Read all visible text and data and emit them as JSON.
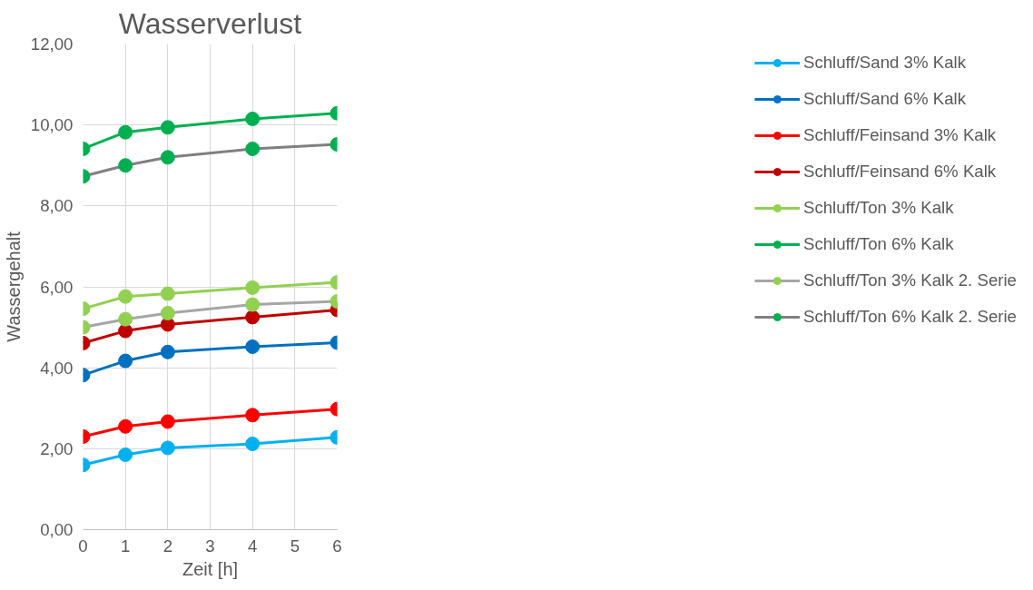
{
  "chart_data": {
    "type": "line",
    "title": "Wasserverlust",
    "xlabel": "Zeit [h]",
    "ylabel": "Wassergehalt",
    "x": [
      0,
      1,
      2,
      4,
      6
    ],
    "xlim": [
      0,
      6
    ],
    "xticks": [
      0,
      1,
      2,
      3,
      4,
      5,
      6
    ],
    "ylim": [
      0,
      12
    ],
    "yticks": [
      {
        "value": 0,
        "label": "0,00"
      },
      {
        "value": 2,
        "label": "2,00"
      },
      {
        "value": 4,
        "label": "4,00"
      },
      {
        "value": 6,
        "label": "6,00"
      },
      {
        "value": 8,
        "label": "8,00"
      },
      {
        "value": 10,
        "label": "10,00"
      },
      {
        "value": 12,
        "label": "12,00"
      }
    ],
    "grid": true,
    "legend": "right",
    "marker": "circle",
    "line_style": "solid",
    "series": [
      {
        "name": "Schluff/Sand 3% Kalk",
        "color": "#00b0f0",
        "values": [
          1.6,
          1.85,
          2.02,
          2.12,
          2.28
        ]
      },
      {
        "name": "Schluff/Sand 6% Kalk",
        "color": "#0070c0",
        "values": [
          3.82,
          4.17,
          4.39,
          4.52,
          4.62
        ]
      },
      {
        "name": "Schluff/Feinsand 3% Kalk",
        "color": "#ff0000",
        "values": [
          2.3,
          2.55,
          2.67,
          2.83,
          2.98
        ]
      },
      {
        "name": "Schluff/Feinsand 6% Kalk",
        "color": "#c00000",
        "values": [
          4.61,
          4.91,
          5.07,
          5.25,
          5.43
        ]
      },
      {
        "name": "Schluff/Ton 3% Kalk",
        "color": "#92d050",
        "values": [
          5.46,
          5.76,
          5.83,
          5.98,
          6.11
        ]
      },
      {
        "name": "Schluff/Ton 6% Kalk",
        "color": "#00b050",
        "values": [
          9.41,
          9.82,
          9.94,
          10.15,
          10.29
        ]
      },
      {
        "name": "Schluff/Ton 3% Kalk 2. Serie",
        "color": "#a6a6a6",
        "colors": [
          "#92d050",
          "#92d050",
          "#92d050",
          "#92d050",
          "#92d050"
        ],
        "values": [
          5.0,
          5.2,
          5.35,
          5.56,
          5.64
        ]
      },
      {
        "name": "Schluff/Ton 6% Kalk 2. Serie",
        "color": "#808080",
        "colors": [
          "#00b050",
          "#00b050",
          "#00b050",
          "#00b050",
          "#00b050"
        ],
        "values": [
          8.73,
          9.0,
          9.2,
          9.41,
          9.52
        ]
      }
    ]
  }
}
